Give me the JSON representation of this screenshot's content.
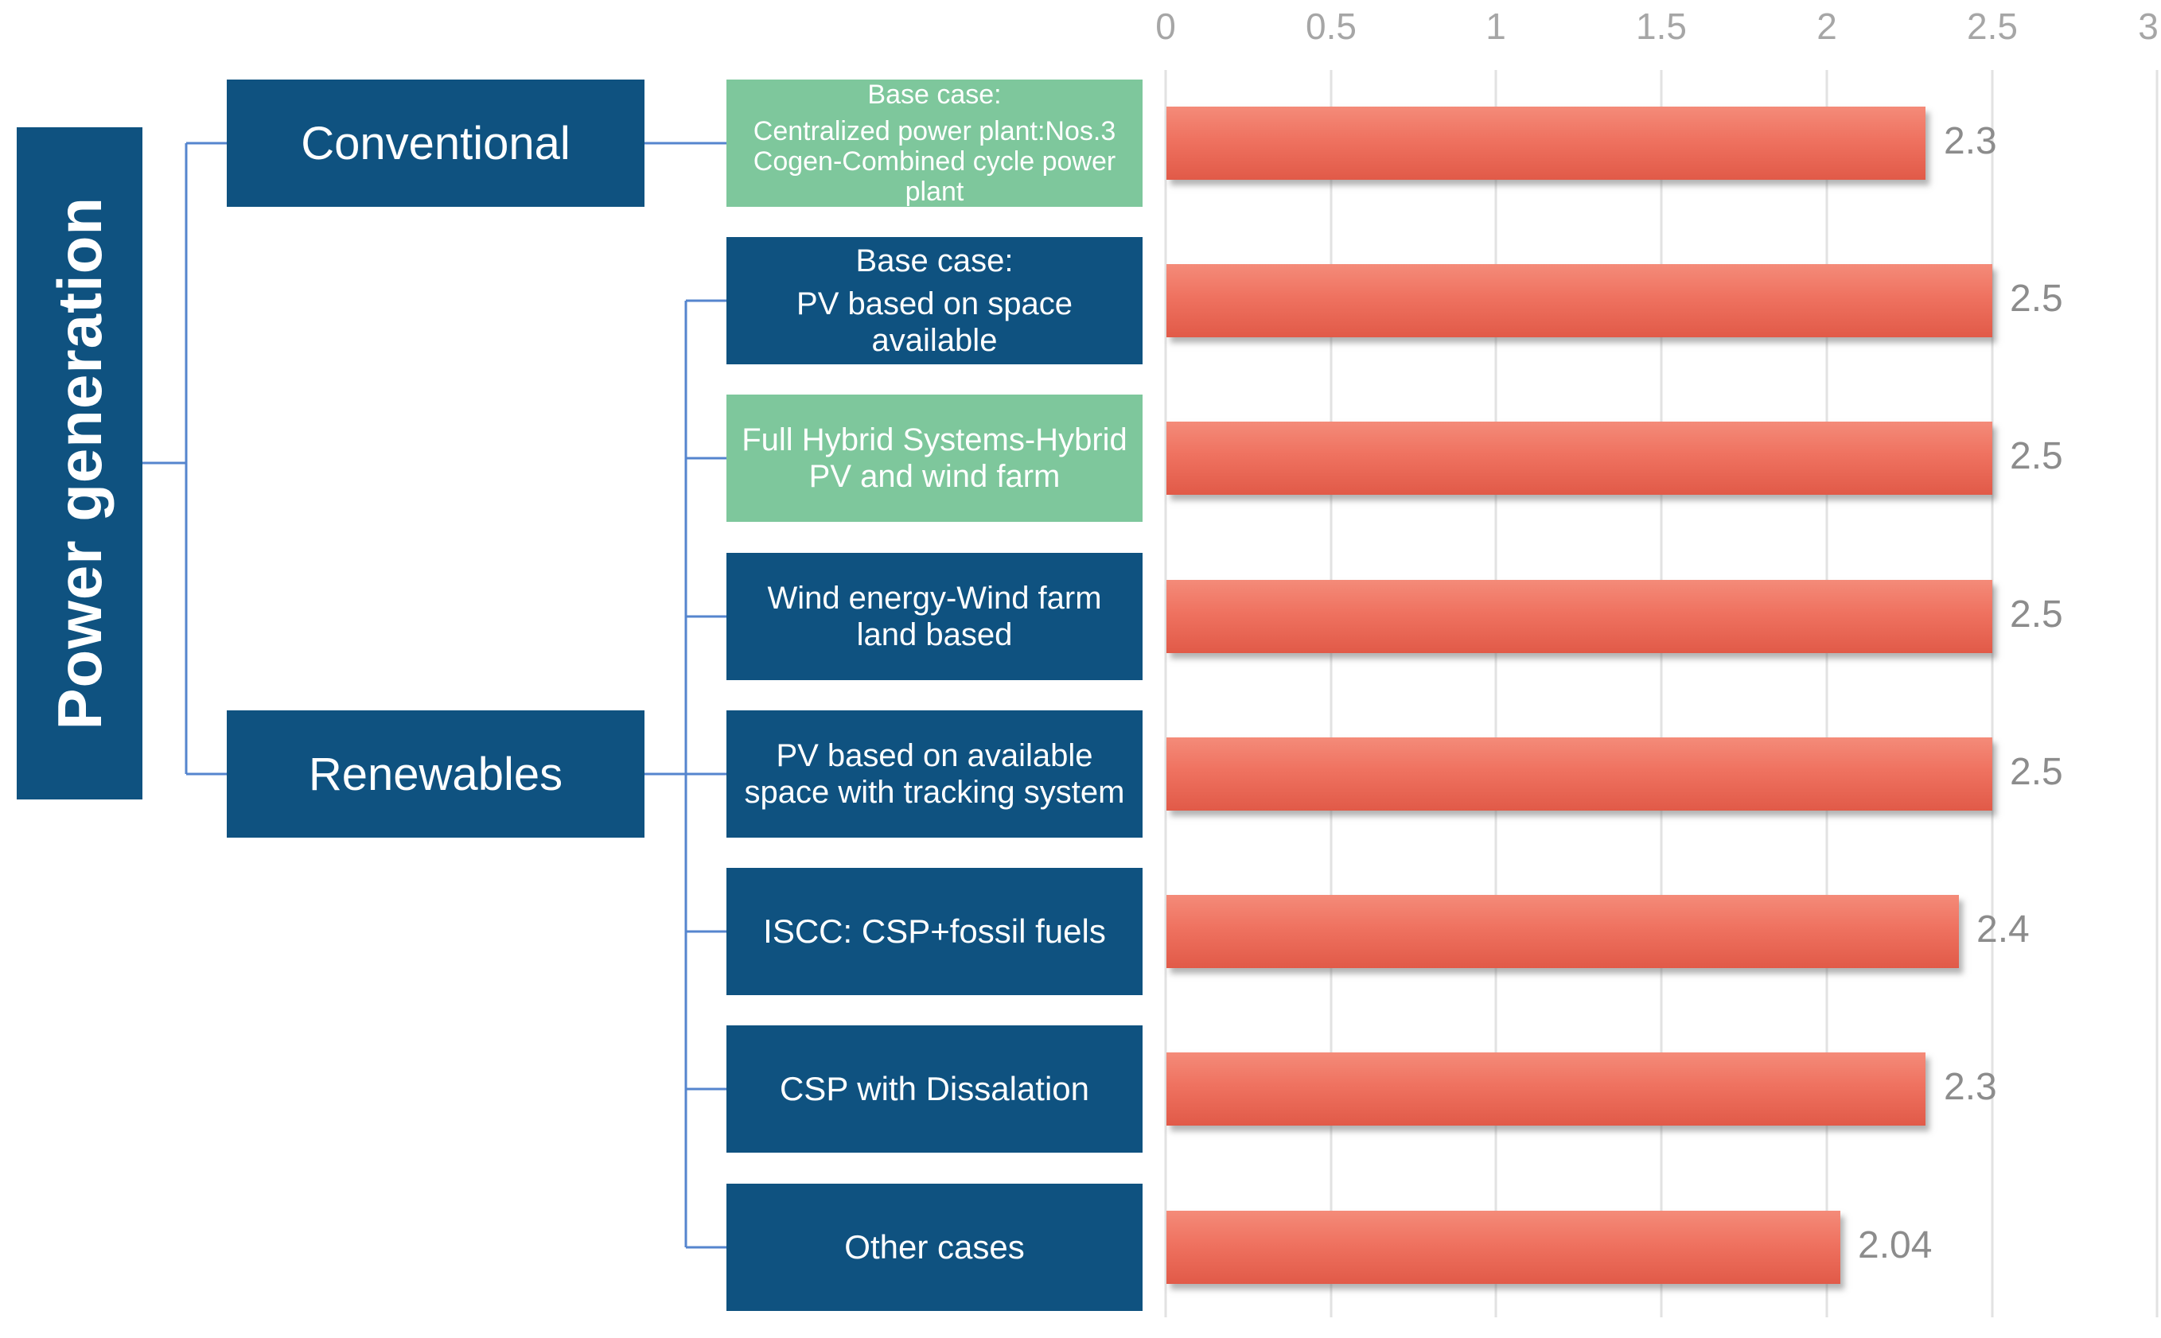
{
  "diagram": {
    "root_label": "Power generation",
    "branches": [
      {
        "label": "Conventional"
      },
      {
        "label": "Renewables"
      }
    ]
  },
  "colors": {
    "dark_blue_box": "#0F5280",
    "green_box": "#7EC79C",
    "bar_gradient_top": "#F48B79",
    "bar_gradient_bottom": "#E15A48",
    "connector_line": "#5585CE",
    "gridline": "#E2E2E2",
    "tick_text": "#A6A6A6",
    "value_text": "#8C8C8C",
    "box_text": "#FFFFFF"
  },
  "chart_data": {
    "type": "bar",
    "orientation": "horizontal",
    "xlim": [
      0,
      3
    ],
    "x_ticks": [
      "0",
      "0.5",
      "1",
      "1.5",
      "2",
      "2.5",
      "3"
    ],
    "grid": true,
    "legend": false,
    "axis_position": "top",
    "categories": [
      {
        "header": "Base case:",
        "body": "Centralized power plant:Nos.3 Cogen-Combined cycle power plant",
        "box_color": "green",
        "parent": "Conventional"
      },
      {
        "header": "Base case:",
        "body": "PV based on space available",
        "box_color": "blue",
        "parent": "Renewables"
      },
      {
        "header": "",
        "body": "Full Hybrid Systems-Hybrid PV and wind farm",
        "box_color": "green",
        "parent": "Renewables"
      },
      {
        "header": "",
        "body": "Wind energy-Wind farm land based",
        "box_color": "blue",
        "parent": "Renewables"
      },
      {
        "header": "",
        "body": "PV based on available space with tracking system",
        "box_color": "blue",
        "parent": "Renewables"
      },
      {
        "header": "",
        "body": "ISCC: CSP+fossil fuels",
        "box_color": "blue",
        "parent": "Renewables"
      },
      {
        "header": "",
        "body": "CSP with Dissalation",
        "box_color": "blue",
        "parent": "Renewables"
      },
      {
        "header": "",
        "body": "Other cases",
        "box_color": "blue",
        "parent": "Renewables"
      }
    ],
    "values": [
      2.3,
      2.5,
      2.5,
      2.5,
      2.5,
      2.4,
      2.3,
      2.04
    ],
    "value_labels": [
      "2.3",
      "2.5",
      "2.5",
      "2.5",
      "2.5",
      "2.4",
      "2.3",
      "2.04"
    ]
  }
}
